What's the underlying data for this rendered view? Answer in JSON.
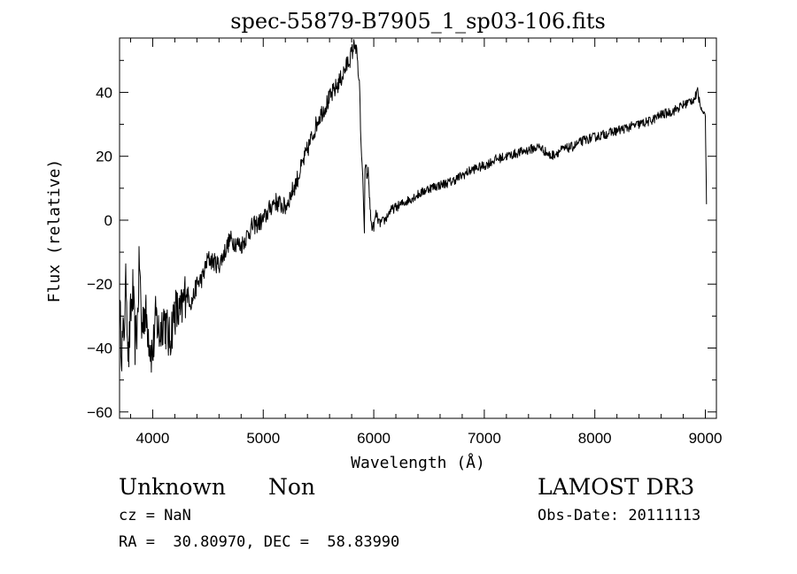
{
  "chart_data": {
    "type": "line",
    "title": "spec-55879-B7905_1_sp03-106.fits",
    "xlabel": "Wavelength (Å)",
    "ylabel": "Flux (relative)",
    "xlim": [
      3700,
      9100
    ],
    "ylim": [
      -62,
      57
    ],
    "x_ticks": [
      4000,
      5000,
      6000,
      7000,
      8000,
      9000
    ],
    "y_ticks": [
      -60,
      -40,
      -20,
      0,
      20,
      40
    ],
    "x_tick_labels": [
      "4000",
      "5000",
      "6000",
      "7000",
      "8000",
      "9000"
    ],
    "y_tick_labels": [
      "−60",
      "−40",
      "−20",
      "0",
      "20",
      "40"
    ],
    "grid": false,
    "series": [
      {
        "color": "#000000",
        "x": [
          3700,
          3720,
          3740,
          3760,
          3780,
          3800,
          3820,
          3840,
          3860,
          3880,
          3900,
          3920,
          3950,
          3980,
          4000,
          4030,
          4060,
          4100,
          4150,
          4200,
          4250,
          4300,
          4350,
          4400,
          4450,
          4500,
          4600,
          4700,
          4800,
          4900,
          5000,
          5100,
          5200,
          5300,
          5400,
          5500,
          5600,
          5700,
          5750,
          5800,
          5830,
          5850,
          5870,
          5880,
          5890,
          5900,
          5910,
          5915,
          5920,
          5930,
          5940,
          5950,
          5960,
          5970,
          5980,
          6000,
          6020,
          6050,
          6100,
          6150,
          6200,
          6300,
          6400,
          6500,
          6600,
          6700,
          6800,
          6900,
          7000,
          7100,
          7200,
          7300,
          7400,
          7500,
          7600,
          7700,
          7800,
          7900,
          8000,
          8100,
          8200,
          8300,
          8400,
          8500,
          8600,
          8700,
          8800,
          8850,
          8900,
          8930,
          8960,
          8980,
          9000,
          9010
        ],
        "y": [
          -28,
          -40,
          -35,
          -18,
          -44,
          -30,
          -22,
          -38,
          -33,
          -12,
          -35,
          -28,
          -32,
          -40,
          -42,
          -30,
          -36,
          -30,
          -38,
          -28,
          -30,
          -22,
          -26,
          -20,
          -18,
          -12,
          -14,
          -6,
          -8,
          -2,
          0,
          6,
          4,
          12,
          22,
          32,
          38,
          44,
          48,
          52,
          56,
          50,
          42,
          28,
          20,
          14,
          2,
          -4,
          16,
          18,
          12,
          16,
          8,
          2,
          -2,
          -2,
          2,
          -1,
          0,
          3,
          4,
          6,
          8,
          10,
          11,
          12,
          14,
          16,
          17,
          19,
          20,
          21,
          22,
          23,
          20,
          22,
          23,
          25,
          26,
          27,
          28,
          29,
          30,
          31,
          33,
          34,
          36,
          37,
          38,
          40,
          35,
          34,
          33,
          5
        ]
      }
    ]
  },
  "info": {
    "class": "Unknown",
    "subclass": "Non",
    "survey": "LAMOST DR3",
    "cz": "cz = NaN",
    "obs_date": "Obs-Date: 20111113",
    "radec": "RA =  30.80970, DEC =  58.83990"
  }
}
